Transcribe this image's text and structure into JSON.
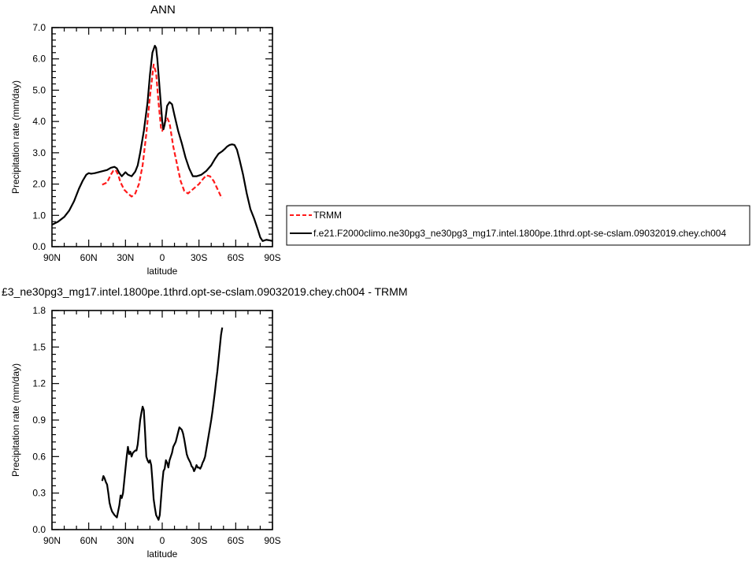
{
  "top_title": "ANN",
  "bottom_title": "£3_ne30pg3_mg17.intel.1800pe.1thrd.opt-se-cslam.09032019.chey.ch004 - TRMM",
  "legend": {
    "entries": [
      {
        "label": "TRMM",
        "color": "#ff1a1a",
        "dash": true
      },
      {
        "label": "f.e21.F2000climo.ne30pg3_ne30pg3_mg17.intel.1800pe.1thrd.opt-se-cslam.09032019.chey.ch004",
        "color": "#000000",
        "dash": false
      }
    ]
  },
  "chart_data": [
    {
      "type": "line",
      "title": "ANN",
      "xlabel": "latitude",
      "ylabel": "Precipitation rate (mm/day)",
      "xlim": [
        -90,
        90
      ],
      "ylim": [
        0,
        7
      ],
      "xticks": [
        {
          "v": -90,
          "label": "90N"
        },
        {
          "v": -60,
          "label": "60N"
        },
        {
          "v": -30,
          "label": "30N"
        },
        {
          "v": 0,
          "label": "0"
        },
        {
          "v": 30,
          "label": "30S"
        },
        {
          "v": 60,
          "label": "60S"
        },
        {
          "v": 90,
          "label": "90S"
        }
      ],
      "yticks": [
        {
          "v": 0,
          "label": "0.0"
        },
        {
          "v": 1,
          "label": "1.0"
        },
        {
          "v": 2,
          "label": "2.0"
        },
        {
          "v": 3,
          "label": "3.0"
        },
        {
          "v": 4,
          "label": "4.0"
        },
        {
          "v": 5,
          "label": "5.0"
        },
        {
          "v": 6,
          "label": "6.0"
        },
        {
          "v": 7,
          "label": "7.0"
        }
      ],
      "series": [
        {
          "name": "TRMM",
          "color": "#ff1a1a",
          "dash": true,
          "x": [
            -49,
            -45,
            -42,
            -40,
            -38,
            -36,
            -34,
            -31,
            -28,
            -25,
            -22,
            -19,
            -16,
            -13,
            -10,
            -7,
            -5,
            -3,
            -1,
            0,
            2,
            4,
            6,
            9,
            12,
            15,
            18,
            21,
            24,
            27,
            30,
            33,
            36,
            39,
            42,
            45,
            48,
            49
          ],
          "y": [
            1.98,
            2.05,
            2.3,
            2.42,
            2.45,
            2.3,
            2.05,
            1.82,
            1.7,
            1.6,
            1.7,
            2.0,
            2.6,
            3.6,
            4.8,
            5.82,
            5.55,
            4.6,
            3.8,
            3.7,
            3.95,
            4.12,
            3.95,
            3.2,
            2.65,
            2.1,
            1.78,
            1.7,
            1.8,
            1.9,
            2.0,
            2.15,
            2.28,
            2.25,
            2.1,
            1.85,
            1.6,
            1.55
          ]
        },
        {
          "name": "f.e21.F2000climo.ne30pg3_ne30pg3_mg17.intel.1800pe.1thrd.opt-se-cslam.09032019.chey.ch004",
          "color": "#000000",
          "dash": false,
          "x": [
            -90,
            -85,
            -80,
            -76,
            -72,
            -68,
            -65,
            -62,
            -60,
            -58,
            -55,
            -50,
            -45,
            -42,
            -39,
            -37,
            -35,
            -33,
            -30,
            -28,
            -25,
            -22,
            -20,
            -18,
            -15,
            -12,
            -10,
            -8,
            -6,
            -5,
            -4,
            -2,
            0,
            1,
            2,
            3,
            4,
            6,
            8,
            10,
            13,
            16,
            19,
            22,
            25,
            28,
            32,
            36,
            40,
            43,
            46,
            49,
            51,
            53,
            55,
            57,
            59,
            61,
            63,
            66,
            69,
            72,
            75,
            78,
            80,
            82,
            85,
            88,
            90
          ],
          "y": [
            0.7,
            0.8,
            0.95,
            1.15,
            1.45,
            1.85,
            2.1,
            2.3,
            2.35,
            2.33,
            2.35,
            2.4,
            2.45,
            2.52,
            2.55,
            2.5,
            2.35,
            2.25,
            2.38,
            2.3,
            2.25,
            2.4,
            2.6,
            3.0,
            3.7,
            4.6,
            5.5,
            6.2,
            6.42,
            6.35,
            6.0,
            5.0,
            4.0,
            3.75,
            3.9,
            4.2,
            4.5,
            4.62,
            4.55,
            4.2,
            3.7,
            3.3,
            2.85,
            2.5,
            2.25,
            2.25,
            2.3,
            2.42,
            2.6,
            2.8,
            2.97,
            3.05,
            3.12,
            3.2,
            3.25,
            3.27,
            3.25,
            3.1,
            2.8,
            2.3,
            1.7,
            1.2,
            0.9,
            0.55,
            0.3,
            0.18,
            0.22,
            0.2,
            0.18
          ]
        }
      ]
    },
    {
      "type": "line",
      "title": "£3_ne30pg3_mg17.intel.1800pe.1thrd.opt-se-cslam.09032019.chey.ch004 - TRMM",
      "xlabel": "latitude",
      "ylabel": "Precipitation rate (mm/day)",
      "xlim": [
        -90,
        90
      ],
      "ylim": [
        0,
        1.8
      ],
      "xticks": [
        {
          "v": -90,
          "label": "90N"
        },
        {
          "v": -60,
          "label": "60N"
        },
        {
          "v": -30,
          "label": "30N"
        },
        {
          "v": 0,
          "label": "0"
        },
        {
          "v": 30,
          "label": "30S"
        },
        {
          "v": 60,
          "label": "60S"
        },
        {
          "v": 90,
          "label": "90S"
        }
      ],
      "yticks": [
        {
          "v": 0,
          "label": "0.0"
        },
        {
          "v": 0.3,
          "label": "0.3"
        },
        {
          "v": 0.6,
          "label": "0.6"
        },
        {
          "v": 0.9,
          "label": "0.9"
        },
        {
          "v": 1.2,
          "label": "1.2"
        },
        {
          "v": 1.5,
          "label": "1.5"
        },
        {
          "v": 1.8,
          "label": "1.8"
        }
      ],
      "series": [
        {
          "color": "#000000",
          "dash": false,
          "x": [
            -49,
            -48,
            -47,
            -46,
            -45,
            -44,
            -43,
            -42,
            -41,
            -39,
            -37,
            -35,
            -34,
            -33,
            -32,
            -31,
            -30,
            -29,
            -28,
            -27,
            -26,
            -25,
            -24,
            -22,
            -21,
            -20,
            -19,
            -18,
            -17,
            -16,
            -15,
            -14,
            -13,
            -12,
            -11,
            -10,
            -9,
            -8,
            -7,
            -6,
            -5,
            -4,
            -3,
            -2,
            -1,
            0,
            1,
            2,
            3,
            4,
            5,
            6,
            7,
            8,
            9,
            10,
            11,
            12,
            13,
            14,
            15,
            16,
            17,
            18,
            19,
            20,
            21,
            22,
            23,
            24,
            25,
            26,
            27,
            28,
            29,
            30,
            31,
            32,
            33,
            34,
            35,
            36,
            37,
            38,
            39,
            40,
            41,
            42,
            43,
            44,
            45,
            46,
            47,
            48,
            49
          ],
          "y": [
            0.4,
            0.44,
            0.42,
            0.39,
            0.37,
            0.3,
            0.22,
            0.18,
            0.15,
            0.12,
            0.1,
            0.2,
            0.28,
            0.26,
            0.3,
            0.4,
            0.5,
            0.6,
            0.68,
            0.62,
            0.64,
            0.6,
            0.63,
            0.65,
            0.65,
            0.7,
            0.8,
            0.9,
            0.96,
            1.01,
            0.98,
            0.8,
            0.6,
            0.57,
            0.55,
            0.57,
            0.53,
            0.4,
            0.25,
            0.18,
            0.12,
            0.1,
            0.08,
            0.12,
            0.25,
            0.38,
            0.48,
            0.5,
            0.57,
            0.55,
            0.51,
            0.57,
            0.6,
            0.63,
            0.68,
            0.7,
            0.72,
            0.76,
            0.8,
            0.84,
            0.83,
            0.82,
            0.79,
            0.74,
            0.68,
            0.62,
            0.59,
            0.57,
            0.55,
            0.52,
            0.51,
            0.48,
            0.5,
            0.53,
            0.51,
            0.51,
            0.5,
            0.52,
            0.55,
            0.57,
            0.6,
            0.66,
            0.72,
            0.78,
            0.84,
            0.9,
            0.97,
            1.05,
            1.13,
            1.22,
            1.3,
            1.4,
            1.5,
            1.6,
            1.66
          ]
        }
      ]
    }
  ]
}
